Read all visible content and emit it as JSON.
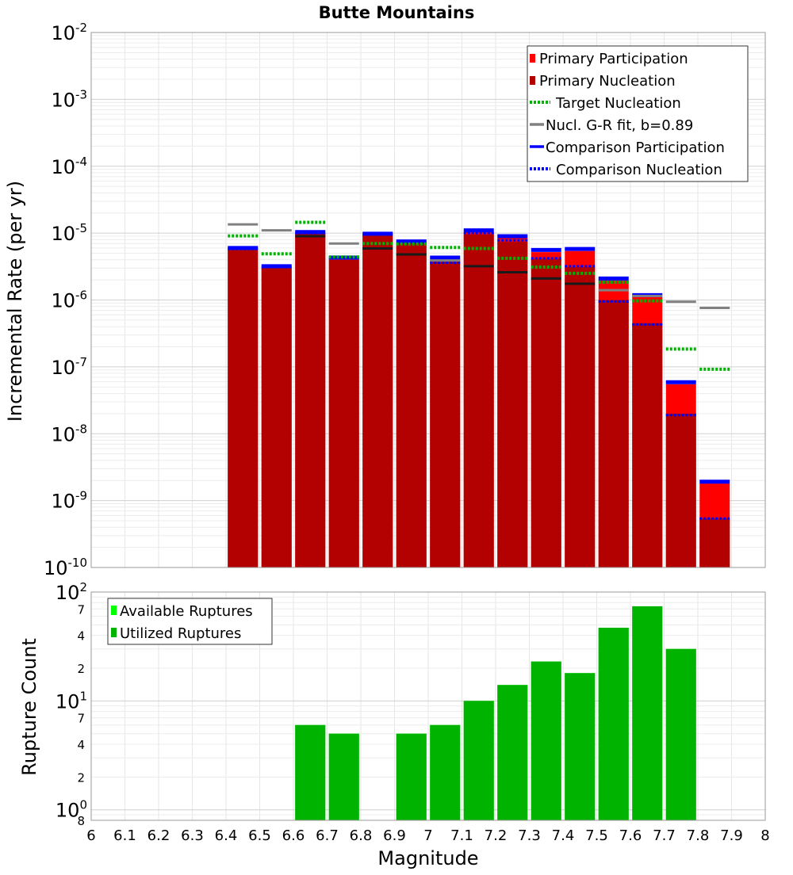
{
  "chart_data": [
    {
      "type": "bar",
      "title": "Butte Mountains",
      "ylabel": "Incremental Rate (per yr)",
      "xlabel": "Magnitude",
      "yscale": "log",
      "ylim": [
        1e-10,
        0.01
      ],
      "xlim": [
        6.0,
        8.0
      ],
      "ytick_exponents": [
        "-10",
        "-9",
        "-8",
        "-7",
        "-6",
        "-5",
        "-4",
        "-3",
        "-2"
      ],
      "ytick_base": "10",
      "x": [
        6.45,
        6.55,
        6.65,
        6.75,
        6.85,
        6.95,
        7.05,
        7.15,
        7.25,
        7.35,
        7.45,
        7.55,
        7.65,
        7.75,
        7.85
      ],
      "series": [
        {
          "name": "Primary Participation",
          "style": "bar",
          "color": "#ff0000",
          "values": [
            5.6e-06,
            3e-06,
            9.8e-06,
            4e-06,
            9.2e-06,
            7e-06,
            4e-06,
            1.03e-05,
            8.5e-06,
            5.2e-06,
            5.4e-06,
            1.97e-06,
            1.1e-06,
            5.5e-08,
            1.8e-09
          ]
        },
        {
          "name": "Primary Nucleation",
          "style": "bar",
          "color": "#b30000",
          "values": [
            5.6e-06,
            3e-06,
            9.8e-06,
            4e-06,
            9.2e-06,
            7e-06,
            3.8e-06,
            9.5e-06,
            7.4e-06,
            4.1e-06,
            3.1e-06,
            1e-06,
            4.5e-07,
            2e-08,
            5.4e-10
          ]
        },
        {
          "name": "Target Nucleation",
          "style": "dotted",
          "color": "#00b300",
          "values": [
            9.1e-06,
            4.9e-06,
            1.45e-05,
            4.4e-06,
            7e-06,
            6.9e-06,
            6.1e-06,
            5.9e-06,
            4.2e-06,
            3.1e-06,
            2.5e-06,
            1.85e-06,
            9.7e-07,
            1.85e-07,
            9.2e-08
          ]
        },
        {
          "name": "Nucl. G-R fit, b=0.89",
          "style": "solid",
          "color": "#808080",
          "values": [
            1.35e-05,
            1.1e-05,
            9e-06,
            7e-06,
            5.9e-06,
            4.8e-06,
            3.9e-06,
            3.2e-06,
            2.6e-06,
            2.1e-06,
            1.75e-06,
            1.4e-06,
            1.15e-06,
            9.4e-07,
            7.6e-07
          ]
        },
        {
          "name": "Comparison Participation",
          "style": "solid",
          "color": "#0000ff",
          "values": [
            6e-06,
            3.2e-06,
            1.04e-05,
            4.3e-06,
            9.8e-06,
            7.5e-06,
            4.3e-06,
            1.1e-05,
            9e-06,
            5.6e-06,
            5.8e-06,
            2.1e-06,
            1.18e-06,
            5.9e-08,
            1.92e-09
          ]
        },
        {
          "name": "Comparison Nucleation",
          "style": "dotted",
          "color": "#0000ff",
          "values": [
            5.8e-06,
            3.1e-06,
            1e-05,
            4.2e-06,
            9.5e-06,
            7.2e-06,
            3.6e-06,
            1e-05,
            7.8e-06,
            4.2e-06,
            3.2e-06,
            9.5e-07,
            4.3e-07,
            1.9e-08,
            5.4e-10
          ]
        }
      ],
      "legend": {
        "placement": "top-right"
      },
      "grid": true
    },
    {
      "type": "bar",
      "ylabel": "Rupture Count",
      "xlabel": "Magnitude",
      "yscale": "log",
      "ylim": [
        0.8,
        100
      ],
      "xlim": [
        6.0,
        8.0
      ],
      "x_tick_labels": [
        "6",
        "6.1",
        "6.2",
        "6.3",
        "6.4",
        "6.5",
        "6.6",
        "6.7",
        "6.8",
        "6.9",
        "7",
        "7.1",
        "7.2",
        "7.3",
        "7.4",
        "7.5",
        "7.6",
        "7.7",
        "7.8",
        "7.9",
        "8"
      ],
      "y_major_ticks": [
        {
          "value": 1,
          "base": "10",
          "exp": "0"
        },
        {
          "value": 10,
          "base": "10",
          "exp": "1"
        },
        {
          "value": 100,
          "base": "10",
          "exp": "2"
        }
      ],
      "y_minor_ticks": [
        {
          "value": 0.8,
          "label": "8"
        },
        {
          "value": 2,
          "label": "2"
        },
        {
          "value": 4,
          "label": "4"
        },
        {
          "value": 7,
          "label": "7"
        },
        {
          "value": 20,
          "label": "2"
        },
        {
          "value": 40,
          "label": "4"
        },
        {
          "value": 70,
          "label": "7"
        }
      ],
      "x": [
        6.65,
        6.75,
        6.95,
        7.05,
        7.15,
        7.25,
        7.35,
        7.45,
        7.55,
        7.65,
        7.75
      ],
      "series": [
        {
          "name": "Available Ruptures",
          "color": "#00ff00",
          "values": [
            6,
            5,
            5,
            6,
            10,
            14,
            23,
            18,
            47,
            74,
            30
          ]
        },
        {
          "name": "Utilized Ruptures",
          "color": "#00b300",
          "values": [
            6,
            5,
            5,
            6,
            10,
            14,
            23,
            18,
            47,
            74,
            30
          ]
        }
      ],
      "legend": {
        "placement": "top-left"
      },
      "grid": true
    }
  ]
}
